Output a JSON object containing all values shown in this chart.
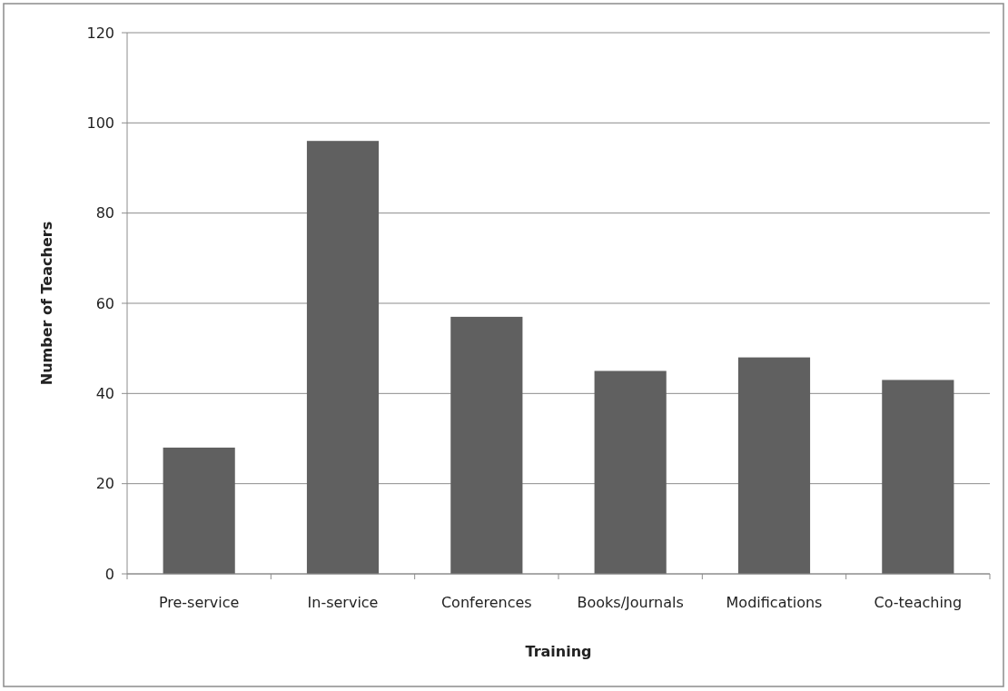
{
  "chart_data": {
    "type": "bar",
    "xlabel": "Training",
    "ylabel": "Number of Teachers",
    "categories": [
      "Pre-service",
      "In-service",
      "Conferences",
      "Books/Journals",
      "Modifications",
      "Co-teaching"
    ],
    "values": [
      28,
      96,
      57,
      45,
      48,
      43
    ],
    "color": "#606060",
    "ylim": [
      0,
      120
    ],
    "yticks": [
      0,
      20,
      40,
      60,
      80,
      100,
      120
    ],
    "grid": "y"
  }
}
